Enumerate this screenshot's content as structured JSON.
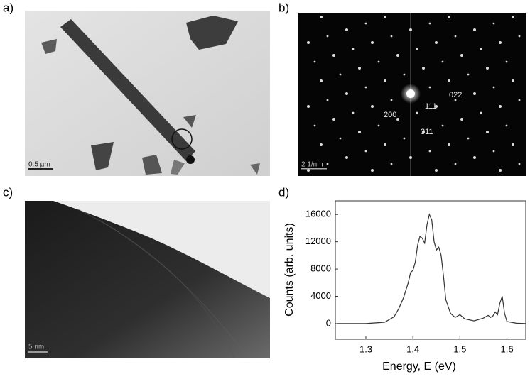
{
  "panels": {
    "a": {
      "label": "a)",
      "scale_bar": "0.5 µm"
    },
    "b": {
      "label": "b)",
      "scale_bar": "2 1/nm",
      "spots": [
        "022",
        "111",
        "200",
        "311"
      ]
    },
    "c": {
      "label": "c)",
      "scale_bar": "5 nm"
    },
    "d": {
      "label": "d)"
    }
  },
  "chart_data": {
    "type": "line",
    "xlabel": "Energy, E (eV)",
    "ylabel": "Counts (arb. units)",
    "x": [
      1.24,
      1.3,
      1.34,
      1.36,
      1.37,
      1.38,
      1.39,
      1.395,
      1.4,
      1.405,
      1.41,
      1.415,
      1.42,
      1.425,
      1.43,
      1.435,
      1.44,
      1.445,
      1.45,
      1.455,
      1.46,
      1.465,
      1.47,
      1.48,
      1.49,
      1.5,
      1.51,
      1.53,
      1.55,
      1.56,
      1.565,
      1.57,
      1.575,
      1.58,
      1.585,
      1.59,
      1.595,
      1.6,
      1.62,
      1.64
    ],
    "series": [
      {
        "color": "#333333",
        "values": [
          0,
          0,
          200,
          1000,
          2200,
          3800,
          6000,
          7500,
          7800,
          9000,
          11500,
          12800,
          12500,
          11800,
          14500,
          16000,
          15200,
          12000,
          10800,
          11200,
          10000,
          7000,
          3500,
          1500,
          900,
          1300,
          700,
          400,
          800,
          1200,
          900,
          1100,
          1700,
          1300,
          3000,
          4000,
          1500,
          300,
          50,
          0
        ]
      }
    ],
    "xlim": [
      1.235,
      1.64
    ],
    "ylim": [
      -2300,
      18000
    ],
    "xticks": [
      1.3,
      1.4,
      1.5,
      1.6
    ],
    "yticks": [
      0,
      4000,
      8000,
      12000,
      16000
    ]
  }
}
